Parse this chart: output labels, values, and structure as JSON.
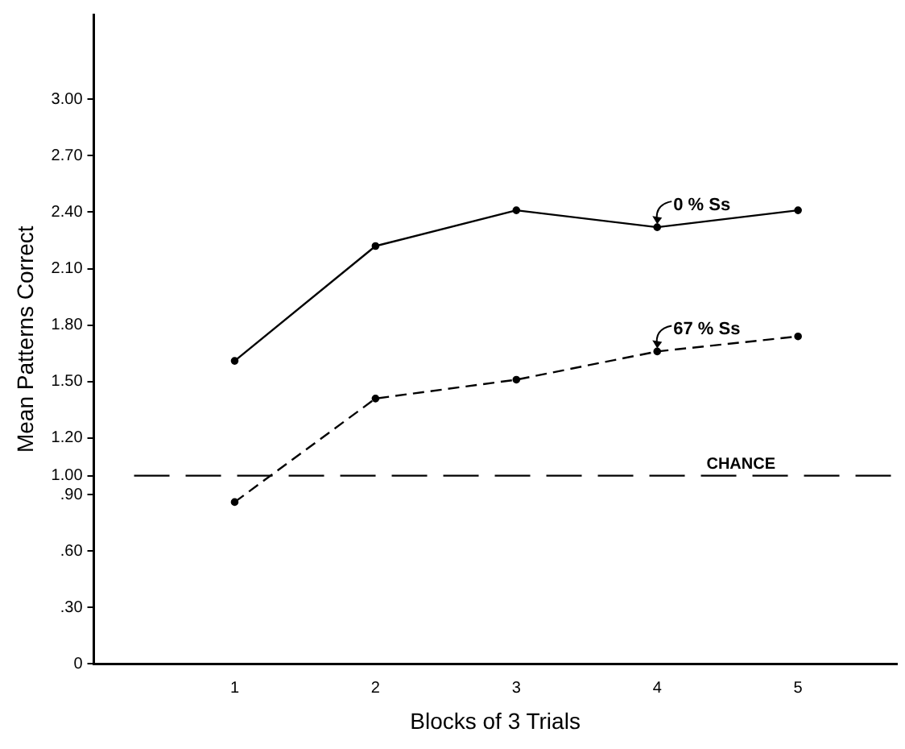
{
  "chart_data": {
    "type": "line",
    "xlabel": "Blocks of 3 Trials",
    "ylabel": "Mean Patterns Correct",
    "x": [
      1,
      2,
      3,
      4,
      5
    ],
    "xlim": [
      0,
      5.7
    ],
    "xticks": [
      1,
      2,
      3,
      4,
      5
    ],
    "ylim": [
      0,
      3.45
    ],
    "yticks": [
      {
        "value": 0,
        "label": "0"
      },
      {
        "value": 0.3,
        "label": ".30"
      },
      {
        "value": 0.6,
        "label": ".60"
      },
      {
        "value": 0.9,
        "label": ".90"
      },
      {
        "value": 1.0,
        "label": "1.00"
      },
      {
        "value": 1.2,
        "label": "1.20"
      },
      {
        "value": 1.5,
        "label": "1.50"
      },
      {
        "value": 1.8,
        "label": "1.80"
      },
      {
        "value": 2.1,
        "label": "2.10"
      },
      {
        "value": 2.4,
        "label": "2.40"
      },
      {
        "value": 2.7,
        "label": "2.70"
      },
      {
        "value": 3.0,
        "label": "3.00"
      }
    ],
    "series": [
      {
        "color": "#000000",
        "line_style": "solid",
        "values": [
          1.61,
          2.22,
          2.41,
          2.32,
          2.41
        ]
      },
      {
        "color": "#000000",
        "line_style": "dashed",
        "values": [
          0.86,
          1.41,
          1.51,
          1.66,
          1.74
        ]
      }
    ],
    "marker": "circle",
    "grid": false,
    "legend": false,
    "ref_lines": [
      {
        "axis": "y",
        "value": 1.0,
        "label": "CHANCE",
        "line_style": "dashed",
        "color": "#000000"
      }
    ],
    "annotations": [
      {
        "text": "0 % Ss",
        "x": 4,
        "y": 2.32
      },
      {
        "text": "67 % Ss",
        "x": 4,
        "y": 1.66
      }
    ]
  }
}
